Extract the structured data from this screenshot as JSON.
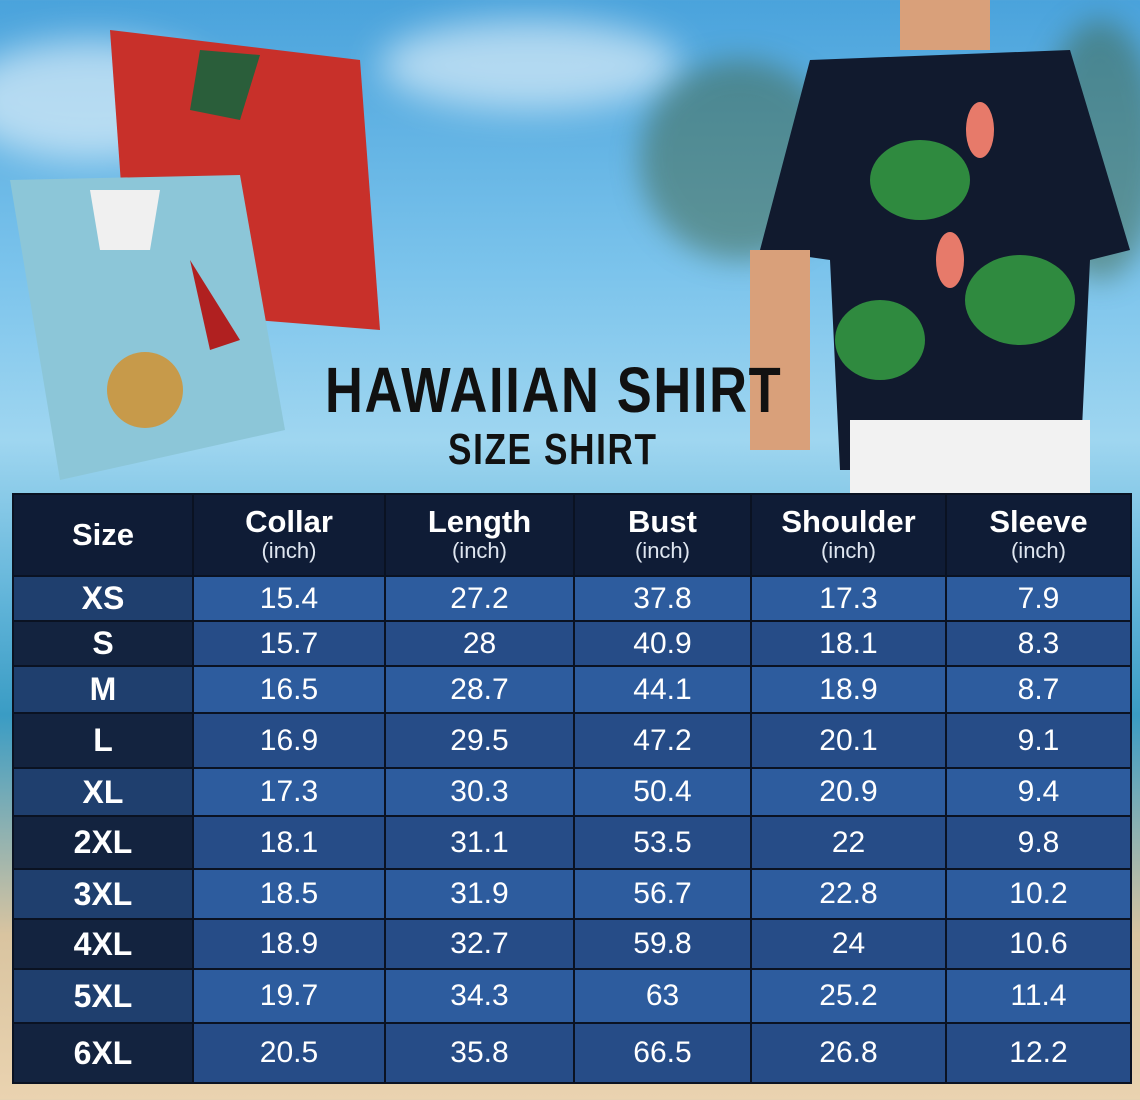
{
  "title": "HAWAIIAN SHIRT",
  "subtitle": "SIZE SHIRT",
  "colors": {
    "header": "#0f1c36",
    "row_light": "#2d5c9e",
    "row_dark": "#264c87"
  },
  "chart_data": {
    "type": "table",
    "columns": [
      {
        "label": "Size",
        "unit": ""
      },
      {
        "label": "Collar",
        "unit": "(inch)"
      },
      {
        "label": "Length",
        "unit": "(inch)"
      },
      {
        "label": "Bust",
        "unit": "(inch)"
      },
      {
        "label": "Shoulder",
        "unit": "(inch)"
      },
      {
        "label": "Sleeve",
        "unit": "(inch)"
      }
    ],
    "rows": [
      [
        "XS",
        "15.4",
        "27.2",
        "37.8",
        "17.3",
        "7.9"
      ],
      [
        "S",
        "15.7",
        "28",
        "40.9",
        "18.1",
        "8.3"
      ],
      [
        "M",
        "16.5",
        "28.7",
        "44.1",
        "18.9",
        "8.7"
      ],
      [
        "L",
        "16.9",
        "29.5",
        "47.2",
        "20.1",
        "9.1"
      ],
      [
        "XL",
        "17.3",
        "30.3",
        "50.4",
        "20.9",
        "9.4"
      ],
      [
        "2XL",
        "18.1",
        "31.1",
        "53.5",
        "22",
        "9.8"
      ],
      [
        "3XL",
        "18.5",
        "31.9",
        "56.7",
        "22.8",
        "10.2"
      ],
      [
        "4XL",
        "18.9",
        "32.7",
        "59.8",
        "24",
        "10.6"
      ],
      [
        "5XL",
        "19.7",
        "34.3",
        "63",
        "25.2",
        "11.4"
      ],
      [
        "6XL",
        "20.5",
        "35.8",
        "66.5",
        "26.8",
        "12.2"
      ]
    ]
  }
}
